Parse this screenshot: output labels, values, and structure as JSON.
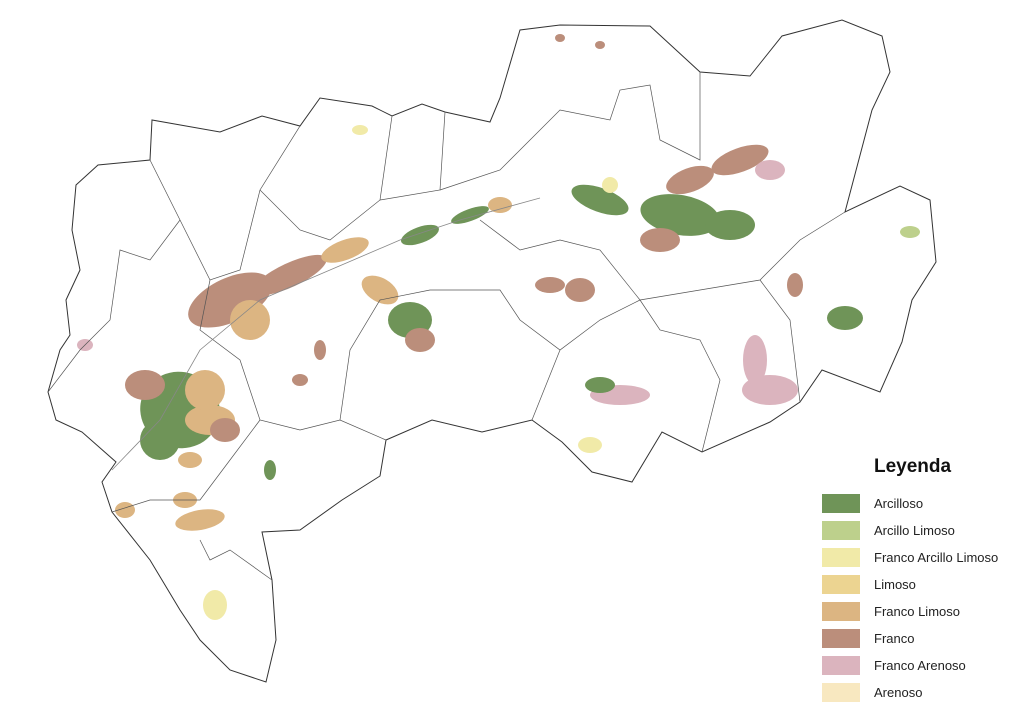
{
  "legend": {
    "title": "Leyenda",
    "items": [
      {
        "label": "Arcilloso",
        "color": "#6f9458"
      },
      {
        "label": "Arcillo Limoso",
        "color": "#bdd08c"
      },
      {
        "label": "Franco Arcillo Limoso",
        "color": "#f1eaa8"
      },
      {
        "label": "Limoso",
        "color": "#ecd491"
      },
      {
        "label": "Franco Limoso",
        "color": "#dcb582"
      },
      {
        "label": "Franco",
        "color": "#bb8e7b"
      },
      {
        "label": "Franco Arenoso",
        "color": "#dbb4be"
      },
      {
        "label": "Arenoso",
        "color": "#f8e8c0"
      }
    ]
  }
}
